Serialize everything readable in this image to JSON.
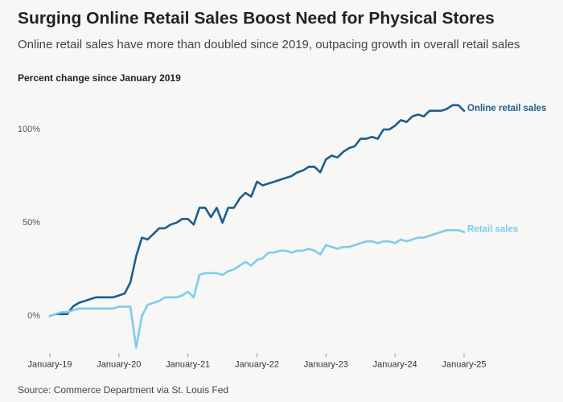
{
  "chart_data": {
    "type": "line",
    "title": "Surging Online Retail Sales Boost Need for Physical Stores",
    "subtitle": "Online retail sales have more than doubled since 2019, outpacing growth in overall retail sales",
    "y_axis_label": "Percent change since January 2019",
    "source": "Source: Commerce Department via St. Louis Fed",
    "categories": [
      "January-19",
      null,
      null,
      null,
      null,
      null,
      null,
      null,
      null,
      null,
      null,
      null,
      "January-20",
      null,
      null,
      null,
      null,
      null,
      null,
      null,
      null,
      null,
      null,
      null,
      "January-21",
      null,
      null,
      null,
      null,
      null,
      null,
      null,
      null,
      null,
      null,
      null,
      "January-22",
      null,
      null,
      null,
      null,
      null,
      null,
      null,
      null,
      null,
      null,
      null,
      "January-23",
      null,
      null,
      null,
      null,
      null,
      null,
      null,
      null,
      null,
      null,
      null,
      "January-24",
      null,
      null,
      null,
      null,
      null,
      null,
      null,
      null,
      null,
      null,
      null,
      "January-25"
    ],
    "series": [
      {
        "name": "Online retail sales",
        "color": "#1c5d8c",
        "values": [
          0,
          1,
          1,
          1,
          5,
          7,
          8,
          9,
          10,
          10,
          10,
          10,
          11,
          12,
          18,
          32,
          42,
          41,
          44,
          47,
          47,
          49,
          50,
          52,
          52,
          49,
          58,
          58,
          53,
          58,
          50,
          58,
          58,
          63,
          66,
          64,
          72,
          70,
          71,
          72,
          73,
          74,
          75,
          77,
          78,
          80,
          80,
          77,
          84,
          86,
          85,
          88,
          90,
          91,
          95,
          95,
          96,
          95,
          100,
          100,
          102,
          105,
          104,
          107,
          108,
          107,
          110,
          110,
          110,
          111,
          113,
          113,
          110
        ]
      },
      {
        "name": "Retail sales",
        "color": "#7fcbec",
        "values": [
          0,
          1,
          2,
          2,
          3,
          4,
          4,
          4,
          4,
          4,
          4,
          4,
          5,
          5,
          5,
          -17,
          0,
          6,
          7,
          8,
          10,
          10,
          10,
          11,
          13,
          10,
          22,
          23,
          23,
          23,
          22,
          24,
          25,
          27,
          29,
          27,
          30,
          31,
          34,
          34,
          35,
          35,
          34,
          35,
          35,
          36,
          35,
          33,
          38,
          37,
          36,
          37,
          37,
          38,
          39,
          40,
          40,
          39,
          40,
          40,
          39,
          41,
          40,
          41,
          42,
          42,
          43,
          44,
          45,
          46,
          46,
          46,
          45
        ]
      }
    ],
    "ylim": [
      -20,
      120
    ],
    "yticks": [
      {
        "value": 0,
        "label": "0%"
      },
      {
        "value": 50,
        "label": "50%"
      },
      {
        "value": 100,
        "label": "100%"
      }
    ],
    "grid": false
  }
}
